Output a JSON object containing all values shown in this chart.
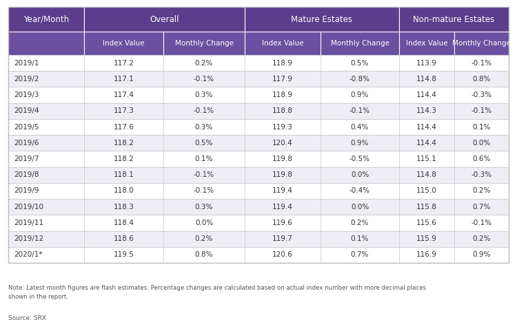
{
  "header_bg_color": "#5B3D8C",
  "header_text_color": "#FFFFFF",
  "subheader_bg_color": "#6B4FA0",
  "row_bg_odd": "#FFFFFF",
  "row_bg_even": "#F0EEF5",
  "border_color": "#BBBBBB",
  "text_color": "#333333",
  "note_text": "Note: Latest month figures are flash estimates. Percentage changes are calculated based on actual index number with more decimal places\nshown in the report.",
  "source_text": "Source: SRX",
  "col_groups": [
    "Year/Month",
    "Overall",
    "Mature Estates",
    "Non-mature Estates"
  ],
  "col_subheaders": [
    "",
    "Index Value",
    "Monthly Change",
    "Index Value",
    "Monthly Change",
    "Index Value",
    "Monthly Change"
  ],
  "rows": [
    [
      "2019/1",
      "117.2",
      "0.2%",
      "118.9",
      "0.5%",
      "113.9",
      "-0.1%"
    ],
    [
      "2019/2",
      "117.1",
      "-0.1%",
      "117.9",
      "-0.8%",
      "114.8",
      "0.8%"
    ],
    [
      "2019/3",
      "117.4",
      "0.3%",
      "118.9",
      "0.9%",
      "114.4",
      "-0.3%"
    ],
    [
      "2019/4",
      "117.3",
      "-0.1%",
      "118.8",
      "-0.1%",
      "114.3",
      "-0.1%"
    ],
    [
      "2019/5",
      "117.6",
      "0.3%",
      "119.3",
      "0.4%",
      "114.4",
      "0.1%"
    ],
    [
      "2019/6",
      "118.2",
      "0.5%",
      "120.4",
      "0.9%",
      "114.4",
      "0.0%"
    ],
    [
      "2019/7",
      "118.2",
      "0.1%",
      "119.8",
      "-0.5%",
      "115.1",
      "0.6%"
    ],
    [
      "2019/8",
      "118.1",
      "-0.1%",
      "119.8",
      "0.0%",
      "114.8",
      "-0.3%"
    ],
    [
      "2019/9",
      "118.0",
      "-0.1%",
      "119.4",
      "-0.4%",
      "115.0",
      "0.2%"
    ],
    [
      "2019/10",
      "118.3",
      "0.3%",
      "119.4",
      "0.0%",
      "115.8",
      "0.7%"
    ],
    [
      "2019/11",
      "118.4",
      "0.0%",
      "119.6",
      "0.2%",
      "115.6",
      "-0.1%"
    ],
    [
      "2019/12",
      "118.6",
      "0.2%",
      "119.7",
      "0.1%",
      "115.9",
      "0.2%"
    ],
    [
      "2020/1*",
      "119.5",
      "0.8%",
      "120.6",
      "0.7%",
      "116.9",
      "0.9%"
    ]
  ],
  "figsize": [
    7.5,
    4.68
  ],
  "dpi": 100
}
